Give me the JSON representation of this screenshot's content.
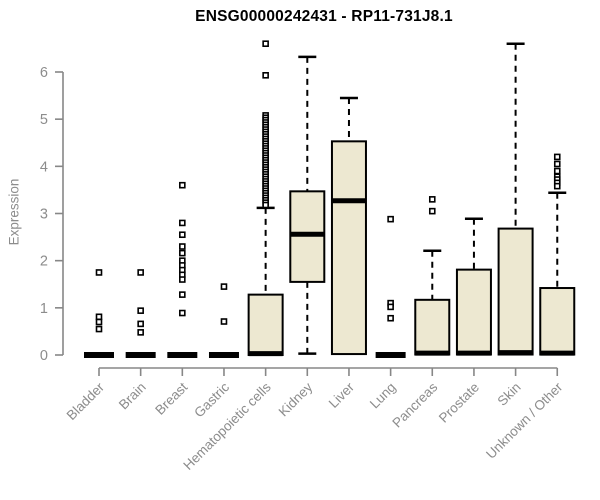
{
  "page": {
    "background": "#ffffff"
  },
  "chart_data": {
    "type": "boxplot",
    "title": "ENSG00000242431 - RP11-731J8.1",
    "ylabel": "Expression",
    "xlabel": "",
    "ylim": [
      0,
      6
    ],
    "yticks": [
      0,
      1,
      2,
      3,
      4,
      5,
      6
    ],
    "grid": false,
    "legend": "none",
    "categories": [
      "Bladder",
      "Brain",
      "Breast",
      "Gastric",
      "Hematopoietic cells",
      "Kidney",
      "Liver",
      "Lung",
      "Pancreas",
      "Prostate",
      "Skin",
      "Unknown / Other"
    ],
    "series": [
      {
        "category": "Bladder",
        "low": 0,
        "q1": 0,
        "median": 0,
        "q3": 0,
        "high": 0,
        "outliers": [
          1.75,
          0.81,
          0.7,
          0.55
        ]
      },
      {
        "category": "Brain",
        "low": 0,
        "q1": 0,
        "median": 0,
        "q3": 0,
        "high": 0,
        "outliers": [
          1.75,
          0.94,
          0.66,
          0.48
        ]
      },
      {
        "category": "Breast",
        "low": 0,
        "q1": 0,
        "median": 0,
        "q3": 0,
        "high": 0,
        "outliers": [
          3.6,
          2.8,
          2.55,
          2.3,
          2.16,
          2.0,
          1.9,
          1.8,
          1.7,
          1.6,
          1.28,
          0.89
        ]
      },
      {
        "category": "Gastric",
        "low": 0,
        "q1": 0,
        "median": 0,
        "q3": 0,
        "high": 0,
        "outliers": [
          1.45,
          0.71
        ]
      },
      {
        "category": "Hematopoietic cells",
        "low": 0,
        "q1": 0,
        "median": 0.03,
        "q3": 1.28,
        "high": 3.12,
        "outliers": [
          6.6,
          5.93,
          5.08,
          5.03,
          4.98,
          4.93,
          4.88,
          4.83,
          4.78,
          4.73,
          4.68,
          4.63,
          4.58,
          4.53,
          4.48,
          4.43,
          4.38,
          4.33,
          4.28,
          4.23,
          4.18,
          4.13,
          4.08,
          4.03,
          3.98,
          3.93,
          3.88,
          3.83,
          3.78,
          3.73,
          3.68,
          3.63,
          3.58,
          3.53,
          3.48,
          3.43,
          3.38,
          3.33,
          3.28,
          3.23,
          3.18
        ]
      },
      {
        "category": "Kidney",
        "low": 0.03,
        "q1": 1.55,
        "median": 2.56,
        "q3": 3.47,
        "high": 6.32,
        "outliers": []
      },
      {
        "category": "Liver",
        "low": 0.02,
        "q1": 0.02,
        "median": 3.27,
        "q3": 4.53,
        "high": 5.45,
        "outliers": []
      },
      {
        "category": "Lung",
        "low": 0,
        "q1": 0,
        "median": 0,
        "q3": 0,
        "high": 0,
        "outliers": [
          2.88,
          1.1,
          1.02,
          0.78
        ]
      },
      {
        "category": "Pancreas",
        "low": 0,
        "q1": 0.01,
        "median": 0.04,
        "q3": 1.17,
        "high": 2.21,
        "outliers": [
          3.3,
          3.05
        ]
      },
      {
        "category": "Prostate",
        "low": 0,
        "q1": 0.01,
        "median": 0.04,
        "q3": 1.81,
        "high": 2.89,
        "outliers": []
      },
      {
        "category": "Skin",
        "low": 0,
        "q1": 0.01,
        "median": 0.05,
        "q3": 2.68,
        "high": 6.6,
        "outliers": []
      },
      {
        "category": "Unknown / Other",
        "low": 0,
        "q1": 0.01,
        "median": 0.04,
        "q3": 1.42,
        "high": 3.44,
        "outliers": [
          4.2,
          4.05,
          3.9,
          3.78,
          3.72,
          3.65,
          3.58
        ]
      }
    ],
    "colors": {
      "box_fill": "#EDE8D1",
      "box_border": "#000000",
      "median": "#000000",
      "whisker": "#000000",
      "outlier_fill": "#FFFFFF",
      "axis": "#878787",
      "tick_text": "#8C8C8C",
      "title_text": "#000000"
    }
  }
}
